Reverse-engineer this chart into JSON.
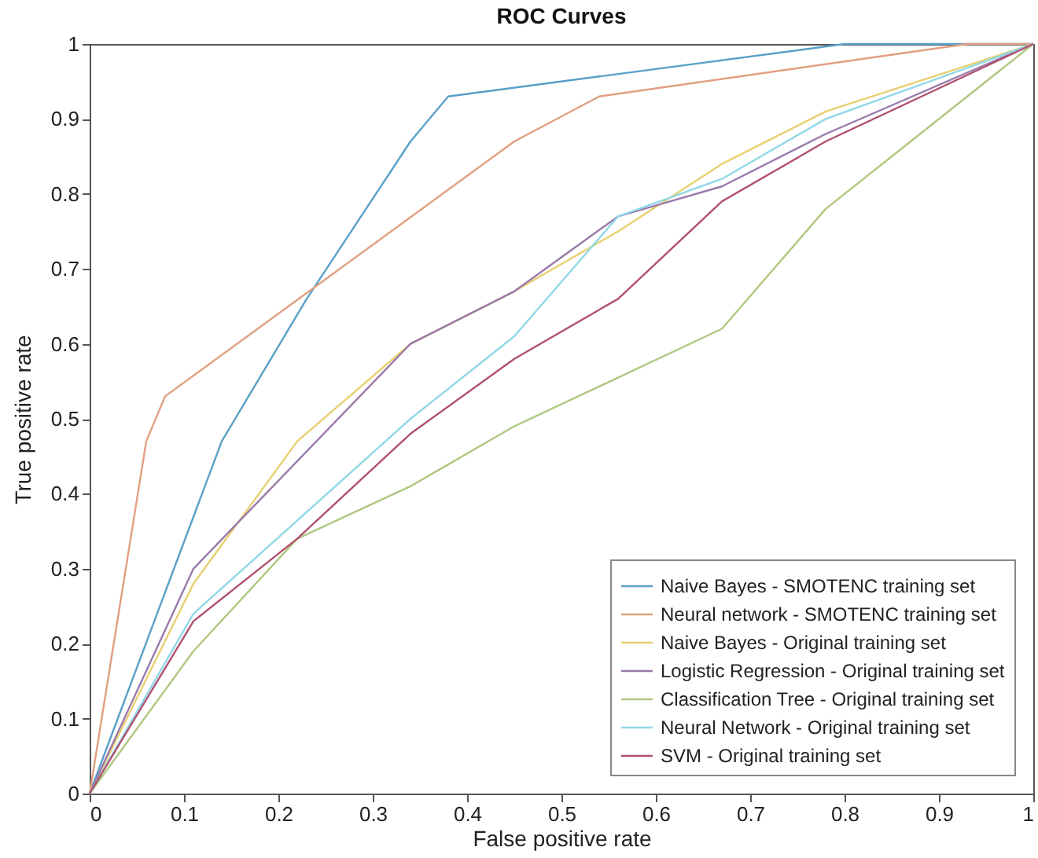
{
  "chart_data": {
    "type": "line",
    "title": "ROC Curves",
    "xlabel": "False positive rate",
    "ylabel": "True positive rate",
    "xlim": [
      0,
      1
    ],
    "ylim": [
      0,
      1
    ],
    "xticks": [
      0,
      0.1,
      0.2,
      0.3,
      0.4,
      0.5,
      0.6,
      0.7,
      0.8,
      0.9,
      1
    ],
    "yticks": [
      0,
      0.1,
      0.2,
      0.3,
      0.4,
      0.5,
      0.6,
      0.7,
      0.8,
      0.9,
      1
    ],
    "grid": false,
    "legend": "bottom right",
    "marker": "none",
    "line_style": "solid",
    "series": [
      {
        "name": "Naive Bayes - SMOTENC training set",
        "color": "#5aa0c8",
        "x": [
          0,
          0.14,
          0.23,
          0.34,
          0.38,
          0.8,
          1
        ],
        "values": [
          0,
          0.47,
          0.66,
          0.87,
          0.93,
          1,
          1
        ]
      },
      {
        "name": "Neural network - SMOTENC training set",
        "color": "#e0a080",
        "x": [
          0,
          0.06,
          0.08,
          0.45,
          0.54,
          0.93,
          1
        ],
        "values": [
          0,
          0.47,
          0.53,
          0.87,
          0.93,
          1,
          1
        ]
      },
      {
        "name": "Naive Bayes - Original training set",
        "color": "#e8d070",
        "x": [
          0,
          0.11,
          0.22,
          0.34,
          0.45,
          0.56,
          0.67,
          0.78,
          1
        ],
        "values": [
          0,
          0.28,
          0.47,
          0.6,
          0.67,
          0.75,
          0.84,
          0.91,
          1
        ]
      },
      {
        "name": "Logistic Regression - Original training set",
        "color": "#9a7aaa",
        "x": [
          0,
          0.11,
          0.34,
          0.45,
          0.56,
          0.67,
          0.78,
          1
        ],
        "values": [
          0,
          0.3,
          0.6,
          0.67,
          0.77,
          0.81,
          0.88,
          1
        ]
      },
      {
        "name": "Classification Tree - Original training set",
        "color": "#b0c880",
        "x": [
          0,
          0.11,
          0.22,
          0.34,
          0.45,
          0.67,
          0.78,
          1
        ],
        "values": [
          0,
          0.19,
          0.34,
          0.41,
          0.49,
          0.62,
          0.78,
          1
        ]
      },
      {
        "name": "Neural Network - Original training set",
        "color": "#90d8e8",
        "x": [
          0,
          0.11,
          0.34,
          0.45,
          0.56,
          0.67,
          0.78,
          1
        ],
        "values": [
          0,
          0.24,
          0.5,
          0.61,
          0.77,
          0.82,
          0.9,
          1
        ]
      },
      {
        "name": "SVM - Original training set",
        "color": "#b05070",
        "x": [
          0,
          0.11,
          0.22,
          0.34,
          0.45,
          0.56,
          0.67,
          0.78,
          1
        ],
        "values": [
          0,
          0.23,
          0.34,
          0.48,
          0.58,
          0.66,
          0.79,
          0.87,
          1
        ]
      }
    ]
  }
}
